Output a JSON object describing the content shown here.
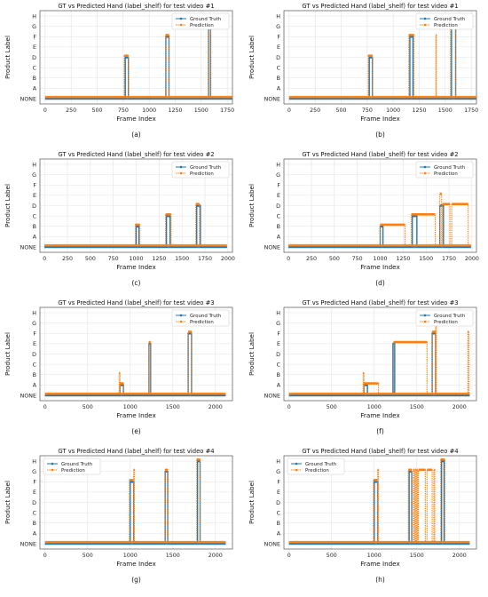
{
  "chart_data": [
    {
      "type": "line",
      "title": "GT vs Predicted Hand (label_shelf) for test video #1",
      "xlabel": "Frame Index",
      "ylabel": "Product Label",
      "caption": "(a)",
      "categories": [
        "NONE",
        "A",
        "B",
        "C",
        "D",
        "E",
        "F",
        "G",
        "H"
      ],
      "xlim": [
        -50,
        1800
      ],
      "xticks": [
        0,
        250,
        500,
        750,
        1000,
        1250,
        1500,
        1750
      ],
      "x_end": 1800,
      "legend": "top-right",
      "grid": true,
      "series": [
        {
          "name": "Ground Truth",
          "color": "#1f77b4",
          "style": "solid-markers",
          "segments": [
            [
              770,
              800,
              "D"
            ],
            [
              1160,
              1190,
              "F"
            ],
            [
              1570,
              1590,
              "G"
            ]
          ]
        },
        {
          "name": "Prediction",
          "color": "#ff7f0e",
          "style": "dotted-markers",
          "segments": [
            [
              760,
              800,
              "D"
            ],
            [
              1160,
              1190,
              "F"
            ],
            [
              1570,
              1590,
              "G"
            ]
          ]
        }
      ]
    },
    {
      "type": "line",
      "title": "GT vs Predicted Hand (label_shelf) for test video #1",
      "xlabel": "Frame Index",
      "ylabel": "Product Label",
      "caption": "(b)",
      "categories": [
        "NONE",
        "A",
        "B",
        "C",
        "D",
        "E",
        "F",
        "G",
        "H"
      ],
      "xlim": [
        -50,
        1800
      ],
      "xticks": [
        0,
        250,
        500,
        750,
        1000,
        1250,
        1500,
        1750
      ],
      "x_end": 1800,
      "legend": "top-right",
      "grid": true,
      "series": [
        {
          "name": "Ground Truth",
          "color": "#1f77b4",
          "style": "solid-markers",
          "segments": [
            [
              770,
              800,
              "D"
            ],
            [
              1160,
              1190,
              "F"
            ],
            [
              1560,
              1600,
              "G"
            ]
          ]
        },
        {
          "name": "Prediction",
          "color": "#ff7f0e",
          "style": "dotted-markers",
          "segments": [
            [
              760,
              800,
              "D"
            ],
            [
              1150,
              1200,
              "F"
            ],
            [
              1410,
              1415,
              "F"
            ],
            [
              1550,
              1600,
              "G"
            ]
          ]
        }
      ]
    },
    {
      "type": "line",
      "title": "GT vs Predicted Hand (label_shelf) for test video #2",
      "xlabel": "Frame Index",
      "ylabel": "Product Label",
      "caption": "(c)",
      "categories": [
        "NONE",
        "A",
        "B",
        "C",
        "D",
        "E",
        "F",
        "G",
        "H"
      ],
      "xlim": [
        -50,
        2050
      ],
      "xticks": [
        0,
        250,
        500,
        750,
        1000,
        1250,
        1500,
        1750,
        2000
      ],
      "x_end": 1990,
      "legend": "top-right",
      "grid": true,
      "series": [
        {
          "name": "Ground Truth",
          "color": "#1f77b4",
          "style": "solid-markers",
          "segments": [
            [
              1000,
              1030,
              "B"
            ],
            [
              1330,
              1370,
              "C"
            ],
            [
              1660,
              1700,
              "D"
            ]
          ]
        },
        {
          "name": "Prediction",
          "color": "#ff7f0e",
          "style": "dotted-markers",
          "segments": [
            [
              990,
              1040,
              "B"
            ],
            [
              1320,
              1380,
              "C"
            ],
            [
              1650,
              1690,
              "D"
            ]
          ]
        }
      ]
    },
    {
      "type": "line",
      "title": "GT vs Predicted Hand (label_shelf) for test video #2",
      "xlabel": "Frame Index",
      "ylabel": "Product Label",
      "caption": "(d)",
      "categories": [
        "NONE",
        "A",
        "B",
        "C",
        "D",
        "E",
        "F",
        "G",
        "H"
      ],
      "xlim": [
        -50,
        2050
      ],
      "xticks": [
        0,
        250,
        500,
        750,
        1000,
        1250,
        1500,
        1750,
        2000
      ],
      "x_end": 1990,
      "legend": "top-right",
      "grid": true,
      "series": [
        {
          "name": "Ground Truth",
          "color": "#1f77b4",
          "style": "solid-markers",
          "segments": [
            [
              1000,
              1030,
              "B"
            ],
            [
              1350,
              1400,
              "C"
            ],
            [
              1650,
              1690,
              "D"
            ]
          ]
        },
        {
          "name": "Prediction",
          "color": "#ff7f0e",
          "style": "dotted-markers",
          "segments": [
            [
              1000,
              1270,
              "B"
            ],
            [
              1340,
              1600,
              "C"
            ],
            [
              1650,
              1670,
              "E"
            ],
            [
              1680,
              1760,
              "D"
            ],
            [
              1780,
              1960,
              "D"
            ]
          ]
        }
      ]
    },
    {
      "type": "line",
      "title": "GT vs Predicted Hand (label_shelf) for test video #3",
      "xlabel": "Frame Index",
      "ylabel": "Product Label",
      "caption": "(e)",
      "categories": [
        "NONE",
        "A",
        "B",
        "C",
        "D",
        "E",
        "F",
        "G",
        "H"
      ],
      "xlim": [
        -60,
        2200
      ],
      "xticks": [
        0,
        500,
        1000,
        1500,
        2000
      ],
      "x_end": 2120,
      "legend": "top-right",
      "grid": true,
      "series": [
        {
          "name": "Ground Truth",
          "color": "#1f77b4",
          "style": "solid-markers",
          "segments": [
            [
              880,
              920,
              "A"
            ],
            [
              1220,
              1240,
              "E"
            ],
            [
              1680,
              1720,
              "F"
            ]
          ]
        },
        {
          "name": "Prediction",
          "color": "#ff7f0e",
          "style": "dotted-markers",
          "segments": [
            [
              870,
              880,
              "B"
            ],
            [
              880,
              920,
              "A"
            ],
            [
              1220,
              1240,
              "E"
            ],
            [
              1680,
              1720,
              "F"
            ]
          ]
        }
      ]
    },
    {
      "type": "line",
      "title": "GT vs Predicted Hand (label_shelf) for test video #3",
      "xlabel": "Frame Index",
      "ylabel": "Product Label",
      "caption": "(f)",
      "categories": [
        "NONE",
        "A",
        "B",
        "C",
        "D",
        "E",
        "F",
        "G",
        "H"
      ],
      "xlim": [
        -60,
        2200
      ],
      "xticks": [
        0,
        500,
        1000,
        1500,
        2000
      ],
      "x_end": 2120,
      "legend": "top-right",
      "grid": true,
      "series": [
        {
          "name": "Ground Truth",
          "color": "#1f77b4",
          "style": "solid-markers",
          "segments": [
            [
              880,
              920,
              "A"
            ],
            [
              1220,
              1240,
              "E"
            ],
            [
              1680,
              1720,
              "F"
            ]
          ]
        },
        {
          "name": "Prediction",
          "color": "#ff7f0e",
          "style": "dotted-markers",
          "segments": [
            [
              870,
              880,
              "B"
            ],
            [
              880,
              1050,
              "A"
            ],
            [
              1230,
              1620,
              "E"
            ],
            [
              1680,
              1720,
              "F"
            ],
            [
              1720,
              1730,
              "G"
            ],
            [
              2100,
              2110,
              "F"
            ]
          ]
        }
      ]
    },
    {
      "type": "line",
      "title": "GT vs Predicted Hand (label_shelf) for test video #4",
      "xlabel": "Frame Index",
      "ylabel": "Product Label",
      "caption": "(g)",
      "categories": [
        "NONE",
        "A",
        "B",
        "C",
        "D",
        "E",
        "F",
        "G",
        "H"
      ],
      "xlim": [
        -60,
        2200
      ],
      "xticks": [
        0,
        500,
        1000,
        1500,
        2000
      ],
      "x_end": 2120,
      "legend": "top-left",
      "grid": true,
      "series": [
        {
          "name": "Ground Truth",
          "color": "#1f77b4",
          "style": "solid-markers",
          "segments": [
            [
              1000,
              1040,
              "F"
            ],
            [
              1410,
              1440,
              "G"
            ],
            [
              1790,
              1820,
              "H"
            ]
          ]
        },
        {
          "name": "Prediction",
          "color": "#ff7f0e",
          "style": "dotted-markers",
          "segments": [
            [
              990,
              1040,
              "F"
            ],
            [
              1040,
              1050,
              "G"
            ],
            [
              1410,
              1440,
              "G"
            ],
            [
              1780,
              1820,
              "H"
            ]
          ]
        }
      ]
    },
    {
      "type": "line",
      "title": "GT vs Predicted Hand (label_shelf) for test video #4",
      "xlabel": "Frame Index",
      "ylabel": "Product Label",
      "caption": "(h)",
      "categories": [
        "NONE",
        "A",
        "B",
        "C",
        "D",
        "E",
        "F",
        "G",
        "H"
      ],
      "xlim": [
        -60,
        2200
      ],
      "xticks": [
        0,
        500,
        1000,
        1500,
        2000
      ],
      "x_end": 2120,
      "legend": "top-left",
      "grid": true,
      "series": [
        {
          "name": "Ground Truth",
          "color": "#1f77b4",
          "style": "solid-markers",
          "segments": [
            [
              1000,
              1040,
              "F"
            ],
            [
              1410,
              1440,
              "G"
            ],
            [
              1790,
              1820,
              "H"
            ]
          ]
        },
        {
          "name": "Prediction",
          "color": "#ff7f0e",
          "style": "dotted-markers",
          "segments": [
            [
              990,
              1040,
              "F"
            ],
            [
              1040,
              1050,
              "G"
            ],
            [
              1400,
              1440,
              "G"
            ],
            [
              1460,
              1470,
              "G"
            ],
            [
              1480,
              1490,
              "G"
            ],
            [
              1500,
              1510,
              "G"
            ],
            [
              1520,
              1600,
              "G"
            ],
            [
              1620,
              1680,
              "G"
            ],
            [
              1700,
              1710,
              "G"
            ],
            [
              1780,
              1830,
              "H"
            ]
          ]
        }
      ]
    }
  ]
}
